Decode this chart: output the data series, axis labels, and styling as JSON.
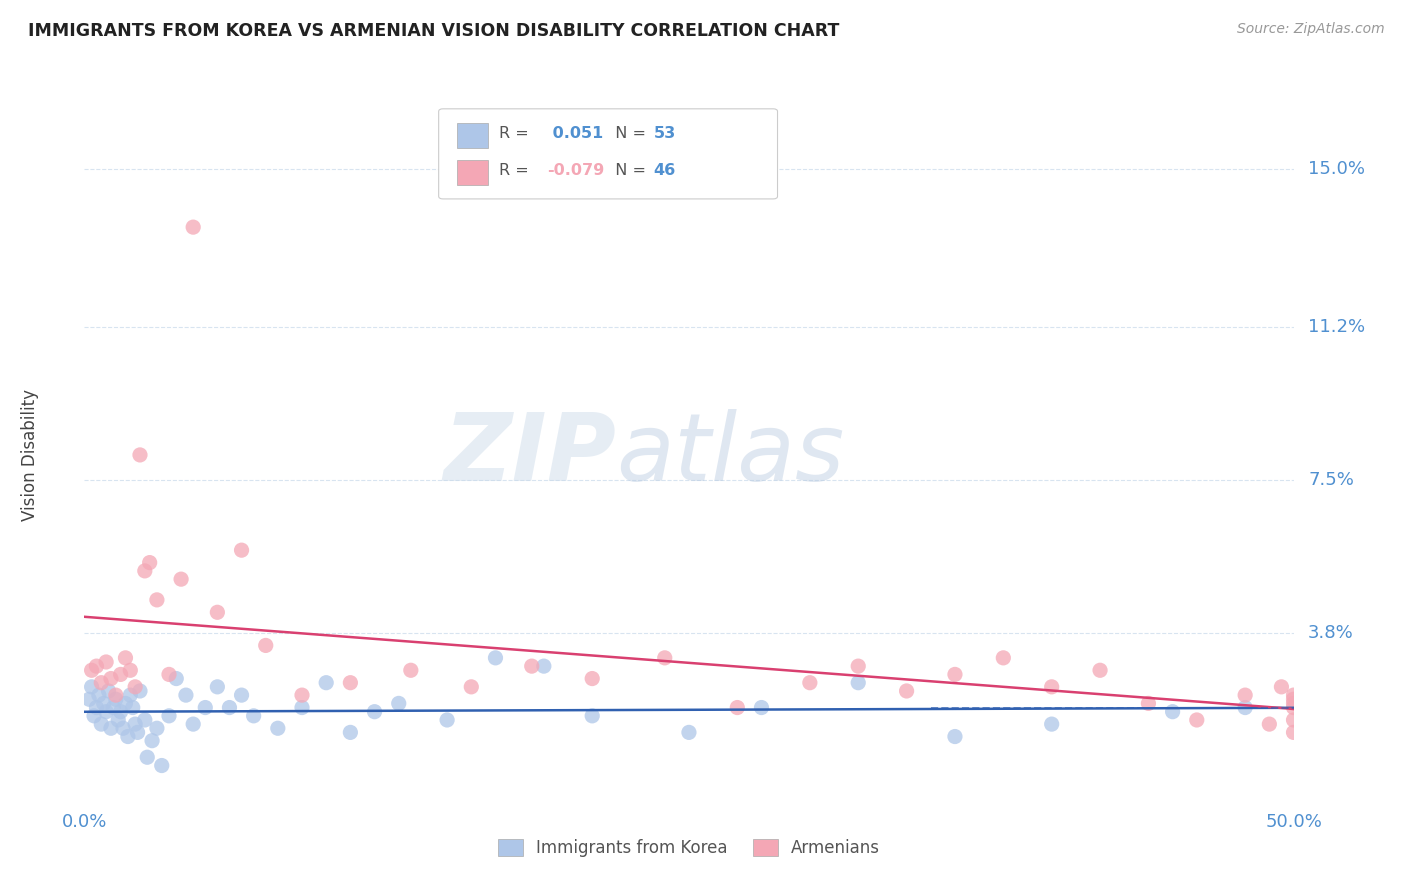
{
  "title": "IMMIGRANTS FROM KOREA VS ARMENIAN VISION DISABILITY CORRELATION CHART",
  "source": "Source: ZipAtlas.com",
  "xmin": 0.0,
  "xmax": 50.0,
  "ymin": -0.3,
  "ymax": 16.5,
  "yticks": [
    3.8,
    7.5,
    11.2,
    15.0
  ],
  "ylabel": "Vision Disability",
  "watermark_zip": "ZIP",
  "watermark_atlas": "atlas",
  "legend_korea_r": "0.051",
  "legend_korea_n": "53",
  "legend_armenian_r": "-0.079",
  "legend_armenian_n": "46",
  "color_korea": "#aec6e8",
  "color_armenian": "#f4a7b5",
  "color_trend_korea": "#3060b0",
  "color_trend_armenian": "#d94070",
  "color_axis_labels": "#5090d0",
  "color_grid": "#d8e4f0",
  "background_color": "#ffffff",
  "korea_x": [
    0.2,
    0.3,
    0.4,
    0.5,
    0.6,
    0.7,
    0.8,
    0.9,
    1.0,
    1.1,
    1.2,
    1.3,
    1.4,
    1.5,
    1.6,
    1.7,
    1.8,
    1.9,
    2.0,
    2.1,
    2.2,
    2.3,
    2.5,
    2.6,
    2.8,
    3.0,
    3.2,
    3.5,
    3.8,
    4.2,
    4.5,
    5.0,
    5.5,
    6.0,
    6.5,
    7.0,
    8.0,
    9.0,
    10.0,
    11.0,
    12.0,
    13.0,
    15.0,
    17.0,
    19.0,
    21.0,
    25.0,
    28.0,
    32.0,
    36.0,
    40.0,
    45.0,
    48.0
  ],
  "korea_y": [
    2.2,
    2.5,
    1.8,
    2.0,
    2.3,
    1.6,
    2.1,
    1.9,
    2.4,
    1.5,
    2.0,
    2.2,
    1.7,
    1.9,
    1.5,
    2.1,
    1.3,
    2.3,
    2.0,
    1.6,
    1.4,
    2.4,
    1.7,
    0.8,
    1.2,
    1.5,
    0.6,
    1.8,
    2.7,
    2.3,
    1.6,
    2.0,
    2.5,
    2.0,
    2.3,
    1.8,
    1.5,
    2.0,
    2.6,
    1.4,
    1.9,
    2.1,
    1.7,
    3.2,
    3.0,
    1.8,
    1.4,
    2.0,
    2.6,
    1.3,
    1.6,
    1.9,
    2.0
  ],
  "armenian_x": [
    0.3,
    0.5,
    0.7,
    0.9,
    1.1,
    1.3,
    1.5,
    1.7,
    1.9,
    2.1,
    2.3,
    2.5,
    2.7,
    3.0,
    3.5,
    4.0,
    4.5,
    5.5,
    6.5,
    7.5,
    9.0,
    11.0,
    13.5,
    16.0,
    18.5,
    21.0,
    24.0,
    27.0,
    30.0,
    32.0,
    34.0,
    36.0,
    38.0,
    40.0,
    42.0,
    44.0,
    46.0,
    48.0,
    49.0,
    49.5,
    50.0,
    50.0,
    50.0,
    50.0,
    50.0,
    50.0
  ],
  "armenian_y": [
    2.9,
    3.0,
    2.6,
    3.1,
    2.7,
    2.3,
    2.8,
    3.2,
    2.9,
    2.5,
    8.1,
    5.3,
    5.5,
    4.6,
    2.8,
    5.1,
    13.6,
    4.3,
    5.8,
    3.5,
    2.3,
    2.6,
    2.9,
    2.5,
    3.0,
    2.7,
    3.2,
    2.0,
    2.6,
    3.0,
    2.4,
    2.8,
    3.2,
    2.5,
    2.9,
    2.1,
    1.7,
    2.3,
    1.6,
    2.5,
    1.7,
    2.1,
    2.3,
    1.4,
    2.0,
    2.2
  ]
}
